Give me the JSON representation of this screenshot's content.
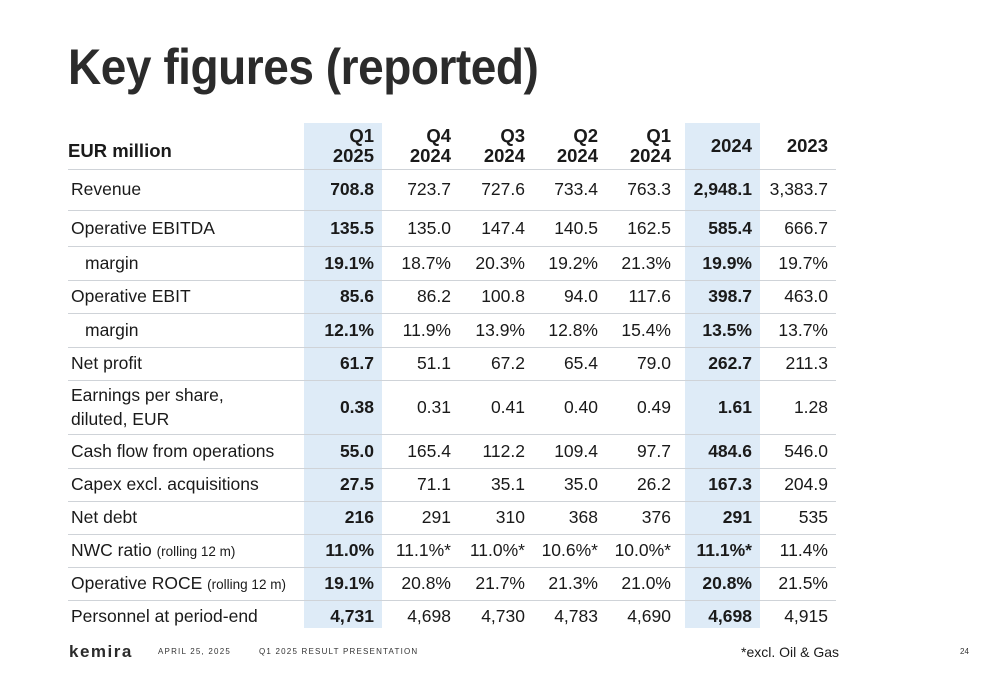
{
  "title": "Key figures (reported)",
  "colors": {
    "highlight": "#deebf7",
    "text": "#1a1a1a",
    "rule": "#cfd3d8"
  },
  "table": {
    "unit_label": "EUR million",
    "columns": [
      {
        "line1": "Q1",
        "line2": "2025"
      },
      {
        "line1": "Q4",
        "line2": "2024"
      },
      {
        "line1": "Q3",
        "line2": "2024"
      },
      {
        "line1": "Q2",
        "line2": "2024"
      },
      {
        "line1": "Q1",
        "line2": "2024"
      },
      {
        "line1": "2024",
        "line2": ""
      },
      {
        "line1": "2023",
        "line2": ""
      }
    ],
    "rows": [
      {
        "label": "Revenue",
        "note": "",
        "values": [
          "708.8",
          "723.7",
          "727.6",
          "733.4",
          "763.3",
          "2,948.1",
          "3,383.7"
        ]
      },
      {
        "label": "Operative EBITDA",
        "note": "",
        "values": [
          "135.5",
          "135.0",
          "147.4",
          "140.5",
          "162.5",
          "585.4",
          "666.7"
        ]
      },
      {
        "label": "margin",
        "note": "",
        "values": [
          "19.1%",
          "18.7%",
          "20.3%",
          "19.2%",
          "21.3%",
          "19.9%",
          "19.7%"
        ]
      },
      {
        "label": "Operative EBIT",
        "note": "",
        "values": [
          "85.6",
          "86.2",
          "100.8",
          "94.0",
          "117.6",
          "398.7",
          "463.0"
        ]
      },
      {
        "label": "margin",
        "note": "",
        "values": [
          "12.1%",
          "11.9%",
          "13.9%",
          "12.8%",
          "15.4%",
          "13.5%",
          "13.7%"
        ]
      },
      {
        "label": "Net profit",
        "note": "",
        "values": [
          "61.7",
          "51.1",
          "67.2",
          "65.4",
          "79.0",
          "262.7",
          "211.3"
        ]
      },
      {
        "label": "Earnings per share, diluted, EUR",
        "note": "",
        "values": [
          "0.38",
          "0.31",
          "0.41",
          "0.40",
          "0.49",
          "1.61",
          "1.28"
        ]
      },
      {
        "label": "Cash flow from operations",
        "note": "",
        "values": [
          "55.0",
          "165.4",
          "112.2",
          "109.4",
          "97.7",
          "484.6",
          "546.0"
        ]
      },
      {
        "label": "Capex excl. acquisitions",
        "note": "",
        "values": [
          "27.5",
          "71.1",
          "35.1",
          "35.0",
          "26.2",
          "167.3",
          "204.9"
        ]
      },
      {
        "label": "Net debt",
        "note": "",
        "values": [
          "216",
          "291",
          "310",
          "368",
          "376",
          "291",
          "535"
        ]
      },
      {
        "label": "NWC ratio",
        "note": "(rolling 12 m)",
        "values": [
          "11.0%",
          "11.1%*",
          "11.0%*",
          "10.6%*",
          "10.0%*",
          "11.1%*",
          "11.4%"
        ]
      },
      {
        "label": "Operative ROCE",
        "note": "(rolling 12 m)",
        "values": [
          "19.1%",
          "20.8%",
          "21.7%",
          "21.3%",
          "21.0%",
          "20.8%",
          "21.5%"
        ]
      },
      {
        "label": "Personnel at period-end",
        "note": "",
        "values": [
          "4,731",
          "4,698",
          "4,730",
          "4,783",
          "4,690",
          "4,698",
          "4,915"
        ]
      }
    ]
  },
  "footer": {
    "logo": "kemira",
    "date": "APRIL 25, 2025",
    "presentation": "Q1 2025 RESULT PRESENTATION",
    "footnote": "*excl. Oil & Gas",
    "page": "24"
  }
}
